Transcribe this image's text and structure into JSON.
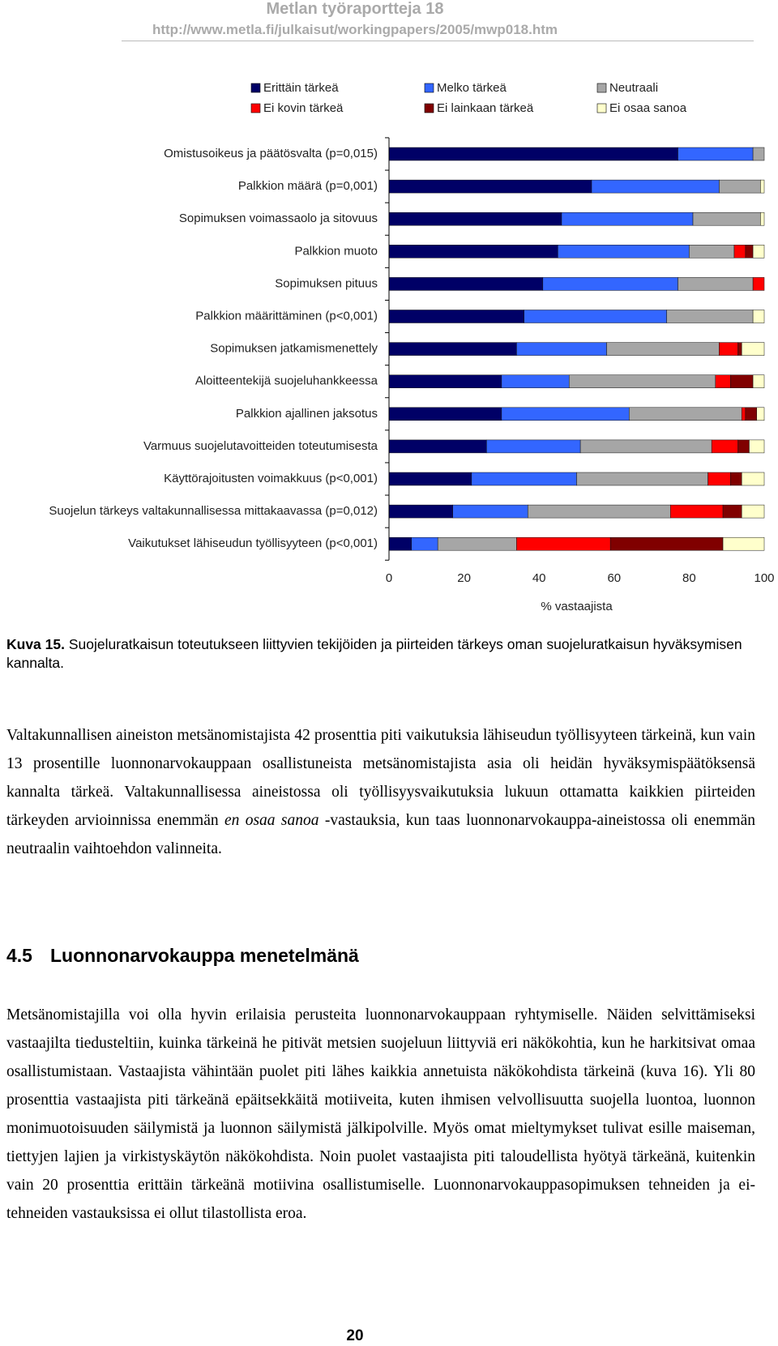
{
  "header": {
    "title": "Metlan työraportteja 18",
    "url": "http://www.metla.fi/julkaisut/workingpapers/2005/mwp018.htm"
  },
  "chart_data": {
    "type": "bar",
    "orientation": "horizontal",
    "stacked": true,
    "categories": [
      "Omistusoikeus ja päätösvalta (p=0,015)",
      "Palkkion määrä (p=0,001)",
      "Sopimuksen voimassaolo ja sitovuus",
      "Palkkion muoto",
      "Sopimuksen pituus",
      "Palkkion määrittäminen (p<0,001)",
      "Sopimuksen jatkamismenettely",
      "Aloitteentekijä suojeluhankkeessa",
      "Palkkion ajallinen jaksotus",
      "Varmuus suojelutavoitteiden toteutumisesta",
      "Käyttörajoitusten voimakkuus (p<0,001)",
      "Suojelun tärkeys valtakunnallisessa mittakaavassa (p=0,012)",
      "Vaikutukset lähiseudun työllisyyteen (p<0,001)"
    ],
    "series": [
      {
        "name": "Erittäin tärkeä",
        "color": "#000066",
        "values": [
          77,
          54,
          46,
          45,
          41,
          36,
          34,
          30,
          30,
          26,
          22,
          17,
          6
        ]
      },
      {
        "name": "Melko tärkeä",
        "color": "#3366ff",
        "values": [
          20,
          34,
          35,
          35,
          36,
          38,
          24,
          18,
          34,
          25,
          28,
          20,
          7
        ]
      },
      {
        "name": "Neutraali",
        "color": "#a6a6a6",
        "values": [
          3,
          11,
          18,
          12,
          20,
          23,
          30,
          39,
          30,
          35,
          35,
          38,
          21
        ]
      },
      {
        "name": "Ei kovin tärkeä",
        "color": "#ff0000",
        "values": [
          0,
          0,
          0,
          3,
          3,
          0,
          5,
          4,
          1,
          7,
          6,
          14,
          25
        ]
      },
      {
        "name": "Ei lainkaan tärkeä",
        "color": "#800000",
        "values": [
          0,
          0,
          0,
          2,
          0,
          0,
          1,
          6,
          3,
          3,
          3,
          5,
          30
        ]
      },
      {
        "name": "Ei osaa sanoa",
        "color": "#ffffcc",
        "values": [
          0,
          1,
          1,
          3,
          0,
          3,
          6,
          3,
          2,
          4,
          6,
          6,
          11
        ]
      }
    ],
    "xlim": [
      0,
      100
    ],
    "xticks": [
      0,
      20,
      40,
      60,
      80,
      100
    ],
    "xlabel": "% vastaajista",
    "legend": "top"
  },
  "caption": {
    "label": "Kuva 15.",
    "text": "Suojeluratkaisun toteutukseen liittyvien tekijöiden ja piirteiden tärkeys oman suojeluratkaisun hyväksymisen kannalta."
  },
  "paragraphs": [
    {
      "before": "Valtakunnallisen aineiston metsänomistajista 42 prosenttia piti vaikutuksia lähiseudun työllisyyteen tärkeinä, kun vain 13 prosentille luonnonarvokauppaan osallistuneista metsänomistajista asia oli heidän hyväksymispäätöksensä kannalta tärkeä. Valtakunnallisessa aineistossa oli työllisyys­vaikutuksia lukuun ottamatta kaikkien piirteiden tärkeyden arvioinnissa enemmän",
      "emphasis": "en osaa sanoa",
      "after": "-vastauksia, kun taas luonnonarvokauppa-aineistossa oli enemmän neutraalin vaihtoehdon valinneita."
    }
  ],
  "section": {
    "number": "4.5",
    "title": "Luonnonarvokauppa menetelmänä",
    "text": "Metsänomistajilla voi olla hyvin erilaisia perusteita luonnonarvokauppaan ryhtymiselle. Näiden selvittämiseksi vastaajilta tiedusteltiin, kuinka tärkeinä he pitivät metsien suojeluun liittyviä eri näkökohtia, kun he harkitsivat omaa osallistumistaan. Vastaajista vähintään puolet piti lähes kaikkia annetuista näkökohdista tärkeinä (kuva 16). Yli 80 prosenttia vastaajista piti tärkeänä epäitsekkäitä motiiveita, kuten ihmisen velvollisuutta suojella luontoa, luonnon monimuotoisuuden säilymistä ja luonnon säilymistä jälkipolville. Myös omat mieltymykset tulivat esille maiseman, tiettyjen lajien ja virkistyskäytön näkökohdista. Noin puolet vastaajista piti taloudellista hyötyä tärkeänä, kuitenkin vain 20 prosenttia erittäin tärkeänä motiivina osallistumiselle. Luonnonarvokauppa­sopimuksen tehneiden ja ei-tehneiden vastauksissa ei ollut tilastollista eroa."
  },
  "page_number": "20"
}
